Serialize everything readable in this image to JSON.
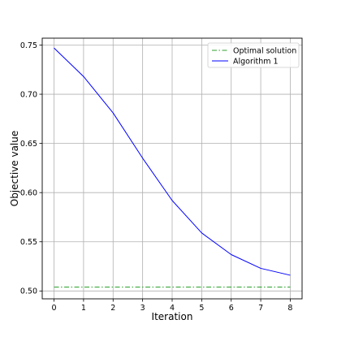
{
  "chart_data": {
    "type": "line",
    "xlabel": "Iteration",
    "ylabel": "Objective value",
    "xlim": [
      -0.4,
      8.4
    ],
    "ylim": [
      0.492,
      0.757
    ],
    "x_ticks": [
      0,
      1,
      2,
      3,
      4,
      5,
      6,
      7,
      8
    ],
    "x_tick_labels": [
      "0",
      "1",
      "2",
      "3",
      "4",
      "5",
      "6",
      "7",
      "8"
    ],
    "y_ticks": [
      0.5,
      0.55,
      0.6,
      0.65,
      0.7,
      0.75
    ],
    "y_tick_labels": [
      "0.50",
      "0.55",
      "0.60",
      "0.65",
      "0.70",
      "0.75"
    ],
    "grid": true,
    "legend_position": "top-right",
    "x": [
      0,
      1,
      2,
      3,
      4,
      5,
      6,
      7,
      8
    ],
    "series": [
      {
        "name": "Optimal solution",
        "color": "#2ca02c",
        "line_style": "dash-dot",
        "values": [
          0.504,
          0.504,
          0.504,
          0.504,
          0.504,
          0.504,
          0.504,
          0.504,
          0.504
        ]
      },
      {
        "name": "Algorithm 1",
        "color": "#0000ff",
        "line_style": "solid",
        "values": [
          0.747,
          0.718,
          0.681,
          0.635,
          0.592,
          0.559,
          0.537,
          0.523,
          0.516
        ]
      }
    ]
  }
}
